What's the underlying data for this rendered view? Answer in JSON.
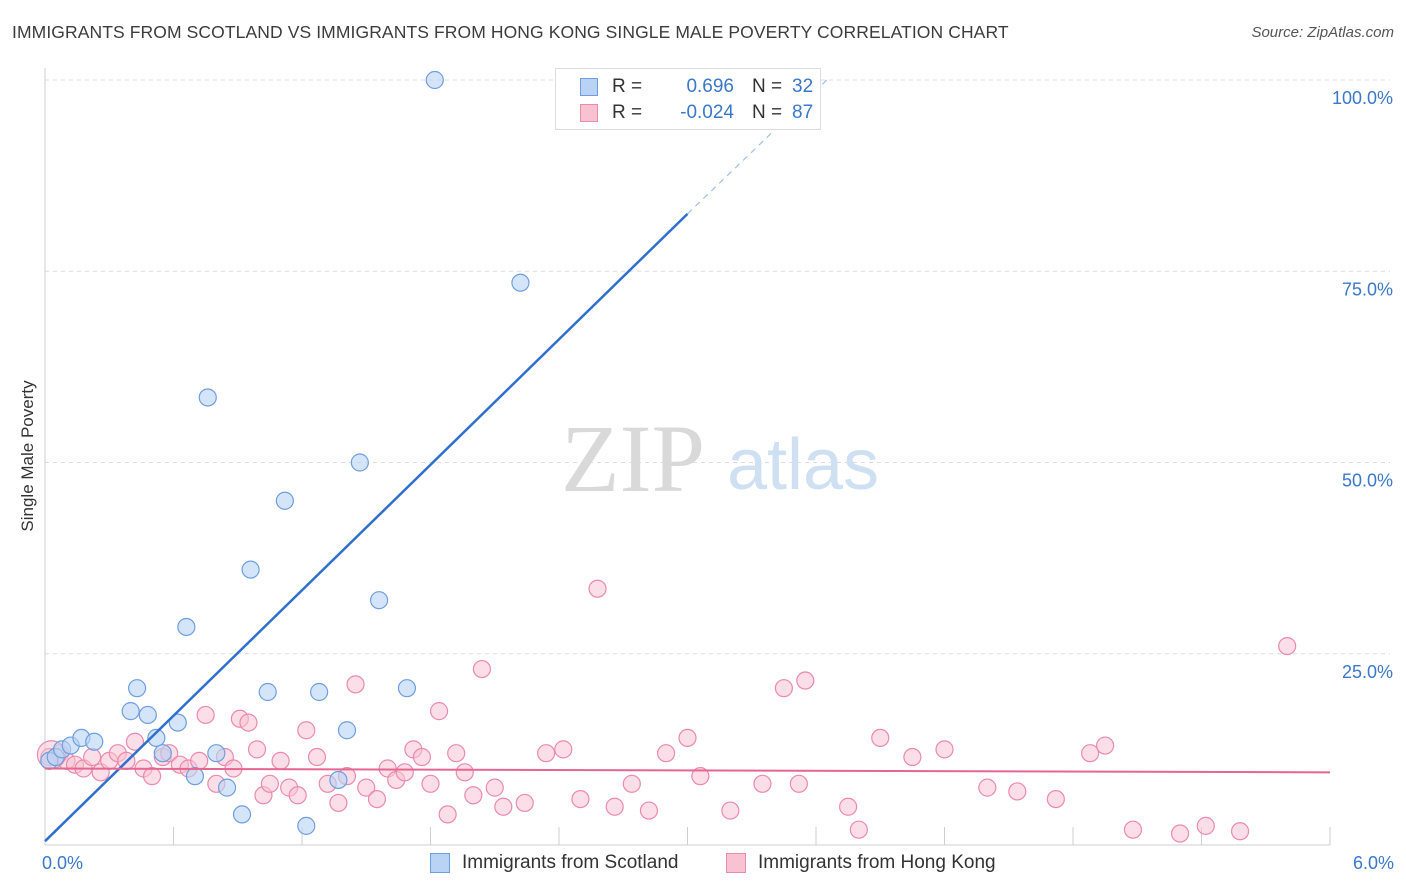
{
  "title": "IMMIGRANTS FROM SCOTLAND VS IMMIGRANTS FROM HONG KONG SINGLE MALE POVERTY CORRELATION CHART",
  "source": "Source: ZipAtlas.com",
  "watermark": {
    "zip": "ZIP",
    "atlas": "atlas"
  },
  "colors": {
    "scotland_fill": "#b9d3f5",
    "scotland_stroke": "#6f9ee0",
    "scotland_line": "#2f6fce",
    "hongkong_fill": "#f8c2d3",
    "hongkong_stroke": "#eb8aab",
    "hongkong_line": "#e66690",
    "value_text": "#3a78c9"
  },
  "legend": {
    "scotland": {
      "r_label": "R =",
      "r_value": "0.696",
      "n_label": "N =",
      "n_value": "32"
    },
    "hongkong": {
      "r_label": "R =",
      "r_value": "-0.024",
      "n_label": "N =",
      "n_value": "87"
    }
  },
  "chart_data": {
    "type": "scatter",
    "title": "IMMIGRANTS FROM SCOTLAND VS IMMIGRANTS FROM HONG KONG SINGLE MALE POVERTY CORRELATION CHART",
    "xlabel": "",
    "ylabel": "Single Male Poverty",
    "xlim": [
      0,
      6
    ],
    "ylim": [
      0,
      100
    ],
    "x_tick_labels": [
      {
        "value": 0,
        "label": "0.0%"
      },
      {
        "value": 6,
        "label": "6.0%"
      }
    ],
    "y_tick_labels": [
      {
        "value": 25,
        "label": "25.0%"
      },
      {
        "value": 50,
        "label": "50.0%"
      },
      {
        "value": 75,
        "label": "75.0%"
      },
      {
        "value": 100,
        "label": "100.0%"
      }
    ],
    "grid": "horizontal dashed",
    "legend_position": "top-center and bottom",
    "series": [
      {
        "name": "Immigrants from Scotland",
        "color": "#6f9ee0",
        "trend": {
          "x": [
            0,
            3.0
          ],
          "y": [
            0.5,
            82.5
          ],
          "dashed_extension_to": [
            3.65,
            100
          ]
        },
        "points": [
          [
            0.02,
            11.0
          ],
          [
            0.05,
            11.5
          ],
          [
            0.08,
            12.5
          ],
          [
            0.12,
            13.0
          ],
          [
            0.17,
            14.0
          ],
          [
            0.23,
            13.5
          ],
          [
            0.4,
            17.5
          ],
          [
            0.43,
            20.5
          ],
          [
            0.48,
            17.0
          ],
          [
            0.52,
            14.0
          ],
          [
            0.55,
            12.0
          ],
          [
            0.62,
            16.0
          ],
          [
            0.66,
            28.5
          ],
          [
            0.7,
            9.0
          ],
          [
            0.76,
            58.5
          ],
          [
            0.8,
            12.0
          ],
          [
            0.85,
            7.5
          ],
          [
            0.92,
            4.0
          ],
          [
            0.96,
            36.0
          ],
          [
            1.04,
            20.0
          ],
          [
            1.12,
            45.0
          ],
          [
            1.22,
            2.5
          ],
          [
            1.28,
            20.0
          ],
          [
            1.37,
            8.5
          ],
          [
            1.41,
            15.0
          ],
          [
            1.47,
            50.0
          ],
          [
            1.56,
            32.0
          ],
          [
            1.69,
            20.5
          ],
          [
            1.82,
            100.0
          ],
          [
            2.22,
            73.5
          ]
        ]
      },
      {
        "name": "Immigrants from Hong Kong",
        "color": "#eb8aab",
        "trend": {
          "x": [
            0,
            6.0
          ],
          "y": [
            10.0,
            9.5
          ]
        },
        "points": [
          [
            0.02,
            11.5
          ],
          [
            0.07,
            12.0
          ],
          [
            0.1,
            11.0
          ],
          [
            0.14,
            10.5
          ],
          [
            0.18,
            10.0
          ],
          [
            0.22,
            11.5
          ],
          [
            0.26,
            9.5
          ],
          [
            0.3,
            11.0
          ],
          [
            0.34,
            12.0
          ],
          [
            0.38,
            11.0
          ],
          [
            0.42,
            13.5
          ],
          [
            0.46,
            10.0
          ],
          [
            0.5,
            9.0
          ],
          [
            0.55,
            11.5
          ],
          [
            0.58,
            12.0
          ],
          [
            0.63,
            10.5
          ],
          [
            0.67,
            10.0
          ],
          [
            0.72,
            11.0
          ],
          [
            0.75,
            17.0
          ],
          [
            0.8,
            8.0
          ],
          [
            0.84,
            11.5
          ],
          [
            0.88,
            10.0
          ],
          [
            0.91,
            16.5
          ],
          [
            0.95,
            16.0
          ],
          [
            0.99,
            12.5
          ],
          [
            1.02,
            6.5
          ],
          [
            1.05,
            8.0
          ],
          [
            1.1,
            11.0
          ],
          [
            1.14,
            7.5
          ],
          [
            1.18,
            6.5
          ],
          [
            1.22,
            15.0
          ],
          [
            1.27,
            11.5
          ],
          [
            1.32,
            8.0
          ],
          [
            1.37,
            5.5
          ],
          [
            1.41,
            9.0
          ],
          [
            1.45,
            21.0
          ],
          [
            1.5,
            7.5
          ],
          [
            1.55,
            6.0
          ],
          [
            1.6,
            10.0
          ],
          [
            1.64,
            8.5
          ],
          [
            1.68,
            9.5
          ],
          [
            1.72,
            12.5
          ],
          [
            1.76,
            11.5
          ],
          [
            1.8,
            8.0
          ],
          [
            1.84,
            17.5
          ],
          [
            1.88,
            4.0
          ],
          [
            1.92,
            12.0
          ],
          [
            1.96,
            9.5
          ],
          [
            2.0,
            6.5
          ],
          [
            2.04,
            23.0
          ],
          [
            2.1,
            7.5
          ],
          [
            2.14,
            5.0
          ],
          [
            2.24,
            5.5
          ],
          [
            2.34,
            12.0
          ],
          [
            2.42,
            12.5
          ],
          [
            2.5,
            6.0
          ],
          [
            2.58,
            33.5
          ],
          [
            2.66,
            5.0
          ],
          [
            2.74,
            8.0
          ],
          [
            2.82,
            4.5
          ],
          [
            2.9,
            12.0
          ],
          [
            3.0,
            14.0
          ],
          [
            3.06,
            9.0
          ],
          [
            3.2,
            4.5
          ],
          [
            3.35,
            8.0
          ],
          [
            3.45,
            20.5
          ],
          [
            3.52,
            8.0
          ],
          [
            3.55,
            21.5
          ],
          [
            3.75,
            5.0
          ],
          [
            3.8,
            2.0
          ],
          [
            3.9,
            14.0
          ],
          [
            4.05,
            11.5
          ],
          [
            4.2,
            12.5
          ],
          [
            4.4,
            7.5
          ],
          [
            4.54,
            7.0
          ],
          [
            4.72,
            6.0
          ],
          [
            4.88,
            12.0
          ],
          [
            4.95,
            13.0
          ],
          [
            5.08,
            2.0
          ],
          [
            5.3,
            1.5
          ],
          [
            5.42,
            2.5
          ],
          [
            5.58,
            1.8
          ],
          [
            5.8,
            26.0
          ]
        ]
      }
    ]
  },
  "bottom_legend": {
    "scotland": "Immigrants from Scotland",
    "hongkong": "Immigrants from Hong Kong"
  }
}
